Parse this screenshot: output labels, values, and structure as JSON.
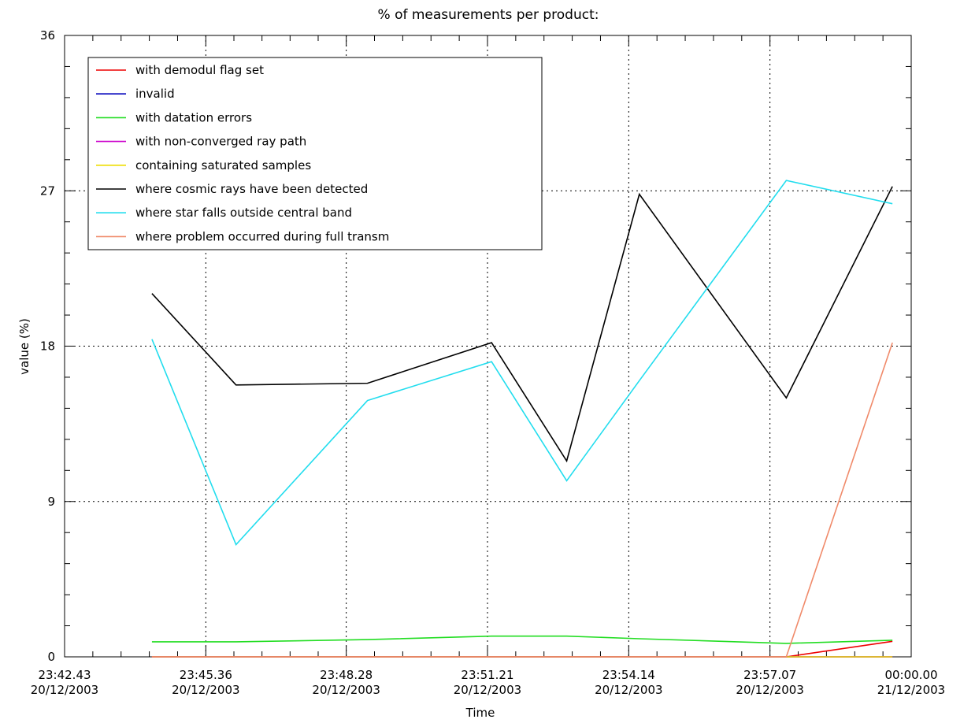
{
  "chart_data": {
    "type": "line",
    "title": "% of measurements per product:",
    "x_label": "Time",
    "y_label": "value (%)",
    "x": [
      85470,
      85573,
      85734,
      85886,
      85978,
      86067,
      86247,
      86377
    ],
    "series": [
      {
        "name": "with demodul flag set",
        "color": "#ee0000",
        "values": [
          0,
          0,
          0,
          0,
          0,
          0,
          0,
          0.9
        ]
      },
      {
        "name": "invalid",
        "color": "#0000bb",
        "values": [
          0,
          0,
          0,
          0,
          0,
          0,
          0,
          0
        ]
      },
      {
        "name": "with datation errors",
        "color": "#22dd22",
        "values": [
          0.87,
          0.87,
          1.0,
          1.2,
          1.2,
          1.05,
          0.78,
          0.96
        ]
      },
      {
        "name": "with non-converged ray path",
        "color": "#cc00cc",
        "values": [
          0,
          0,
          0,
          0,
          0,
          0,
          0,
          0
        ]
      },
      {
        "name": "containing saturated samples",
        "color": "#eedd00",
        "values": [
          0,
          0,
          0,
          0,
          0,
          0,
          0,
          0
        ]
      },
      {
        "name": "where cosmic rays have been detected",
        "color": "#000000",
        "values": [
          21.05,
          15.75,
          15.85,
          18.2,
          11.35,
          26.8,
          15.0,
          27.25
        ]
      },
      {
        "name": "where star falls outside central band",
        "color": "#22ddee",
        "values": [
          18.4,
          6.5,
          14.85,
          17.1,
          10.2,
          16.0,
          27.6,
          26.25
        ]
      },
      {
        "name": "where problem occurred during full transm",
        "color": "#f08a6a",
        "values": [
          0,
          0,
          0,
          0,
          0,
          0,
          0,
          18.2
        ]
      }
    ],
    "xlim": [
      85363,
      86400
    ],
    "xticks": [
      {
        "value": 85363,
        "label": "23:42.43\n20/12/2003"
      },
      {
        "value": 85536,
        "label": "23:45.36\n20/12/2003"
      },
      {
        "value": 85708,
        "label": "23:48.28\n20/12/2003"
      },
      {
        "value": 85881,
        "label": "23:51.21\n20/12/2003"
      },
      {
        "value": 86054,
        "label": "23:54.14\n20/12/2003"
      },
      {
        "value": 86227,
        "label": "23:57.07\n20/12/2003"
      },
      {
        "value": 86400,
        "label": "00:00.00\n21/12/2003"
      }
    ],
    "ylim": [
      0,
      36
    ],
    "yticks": [
      0,
      9,
      18,
      27,
      36
    ],
    "grid": true,
    "legend": "top-left"
  }
}
